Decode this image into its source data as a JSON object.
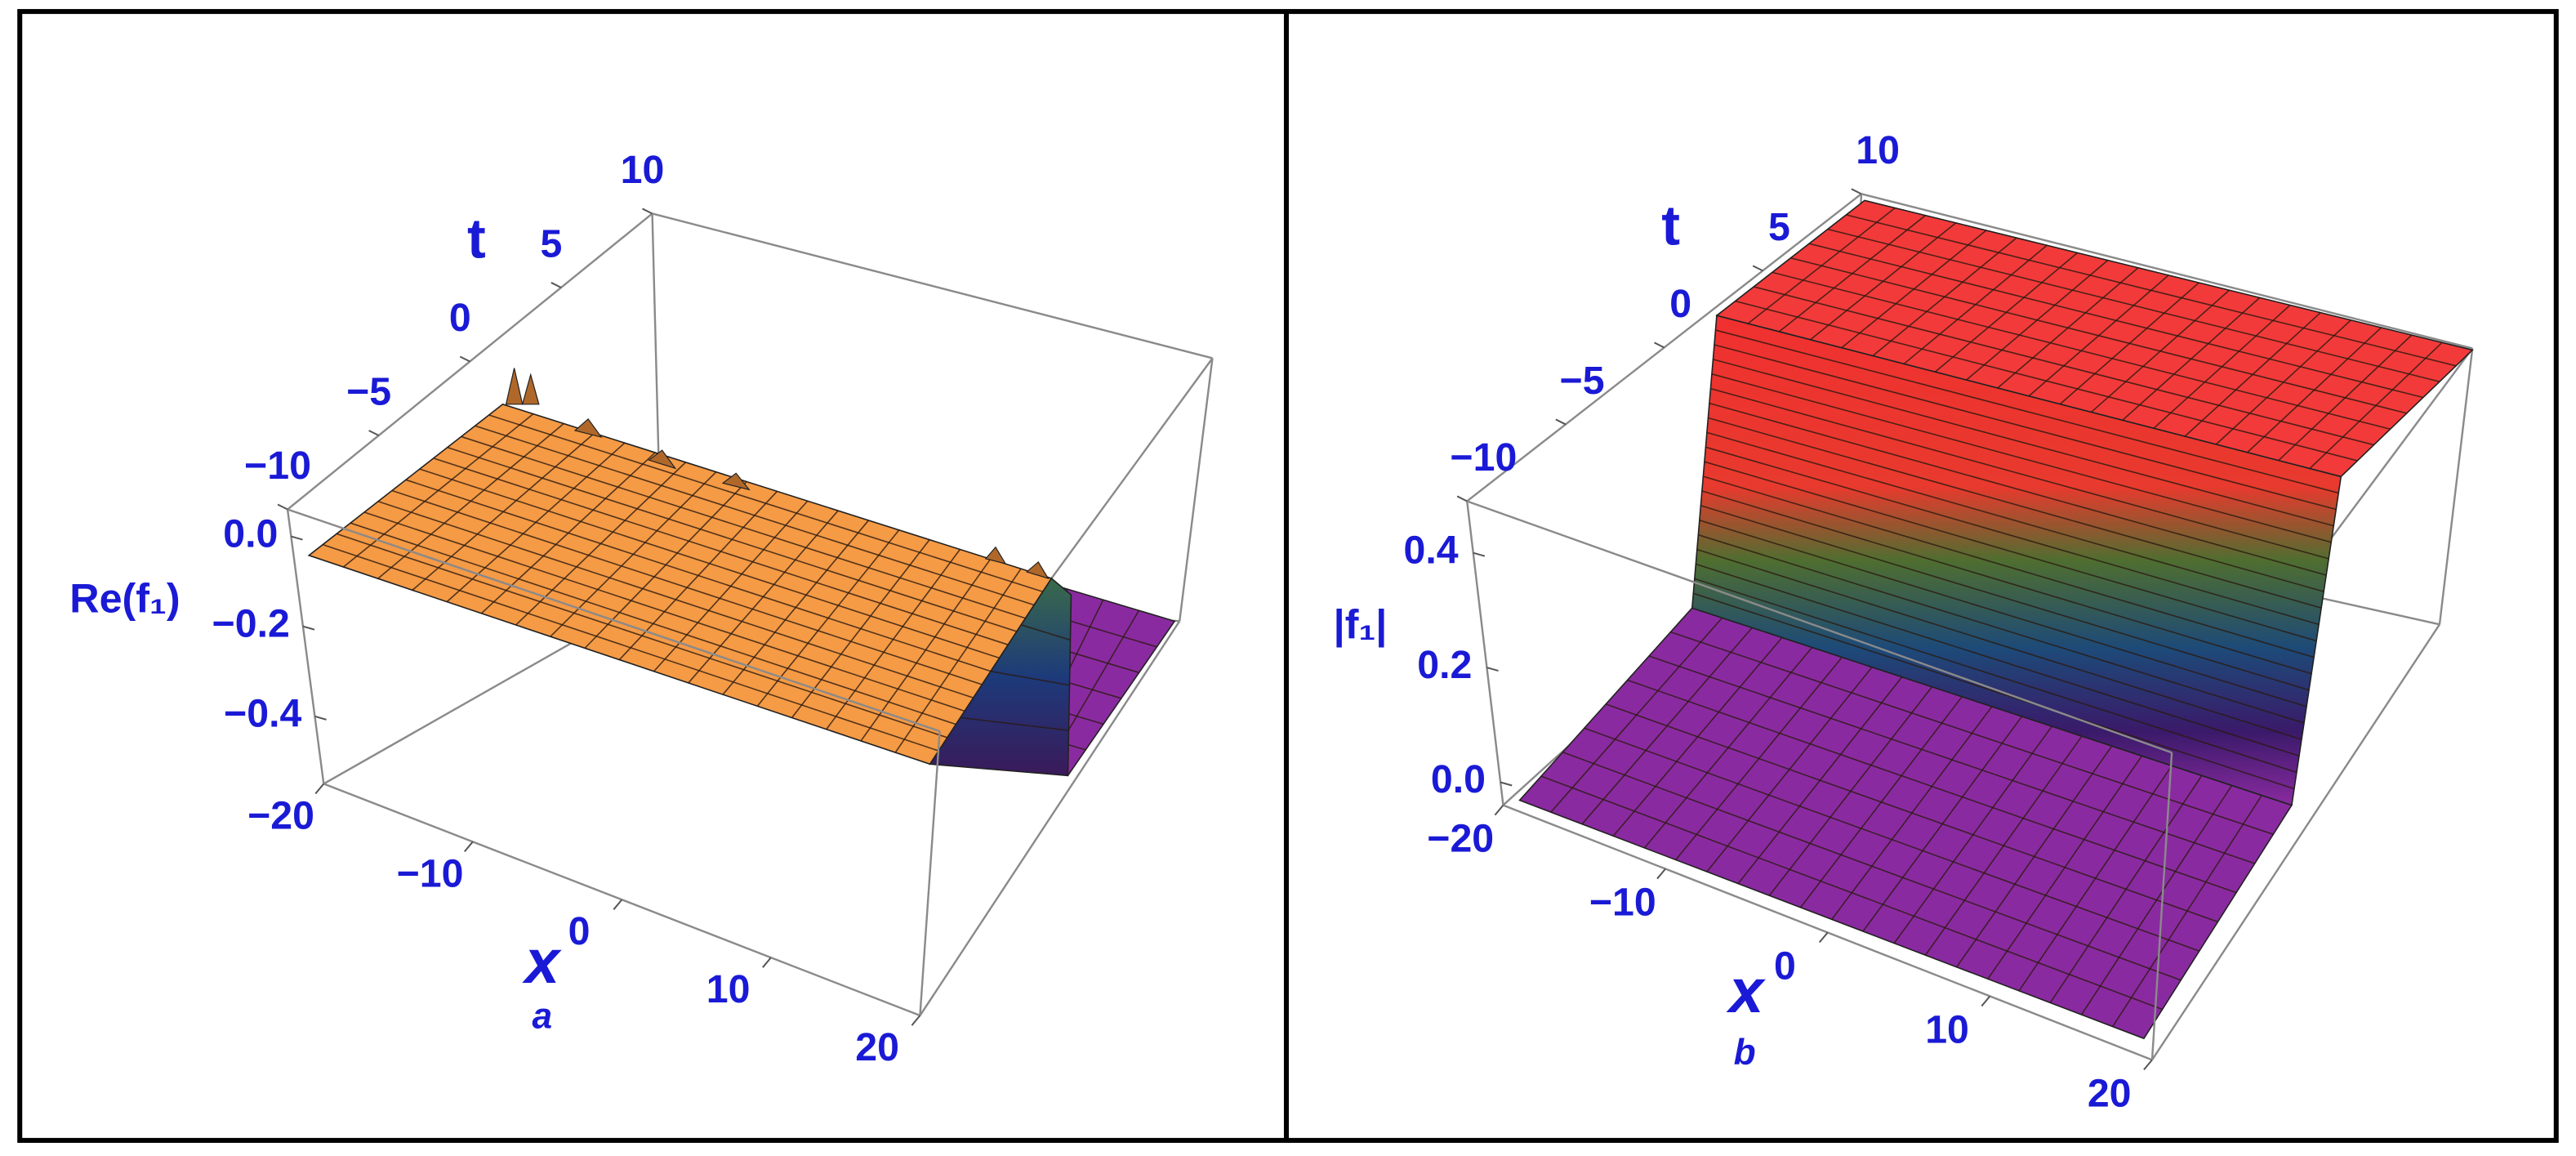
{
  "chart_data": [
    {
      "type": "surface3d",
      "caption": "a",
      "xlabel": "x",
      "ylabel": "t",
      "zlabel": "Re(f₁)",
      "xlim": [
        -20,
        20
      ],
      "ylim": [
        -10,
        10
      ],
      "zlim": [
        -0.55,
        0.06
      ],
      "xticks": [
        {
          "value": -20,
          "label": "−20"
        },
        {
          "value": -10,
          "label": "−10"
        },
        0,
        10,
        20
      ],
      "yticks": [
        {
          "value": -10,
          "label": "−10"
        },
        {
          "value": -5,
          "label": "−5"
        },
        0,
        5,
        10
      ],
      "zticks": [
        {
          "value": 0,
          "label": "0.0"
        },
        {
          "value": -0.2,
          "label": "−0.2"
        },
        {
          "value": -0.4,
          "label": "−0.4"
        }
      ]
    },
    {
      "type": "surface3d",
      "caption": "b",
      "xlabel": "x",
      "ylabel": "t",
      "zlabel": "|f₁|",
      "xlim": [
        -20,
        20
      ],
      "ylim": [
        -10,
        10
      ],
      "zlim": [
        -0.04,
        0.49
      ],
      "xticks": [
        {
          "value": -20,
          "label": "−20"
        },
        {
          "value": -10,
          "label": "−10"
        },
        0,
        10,
        20
      ],
      "yticks": [
        {
          "value": -10,
          "label": "−10"
        },
        {
          "value": -5,
          "label": "−5"
        },
        0,
        5,
        10
      ],
      "zticks": [
        {
          "value": 0,
          "label": "0.0"
        },
        {
          "value": 0.2,
          "label": "0.2"
        },
        {
          "value": 0.4,
          "label": "0.4"
        }
      ]
    }
  ]
}
